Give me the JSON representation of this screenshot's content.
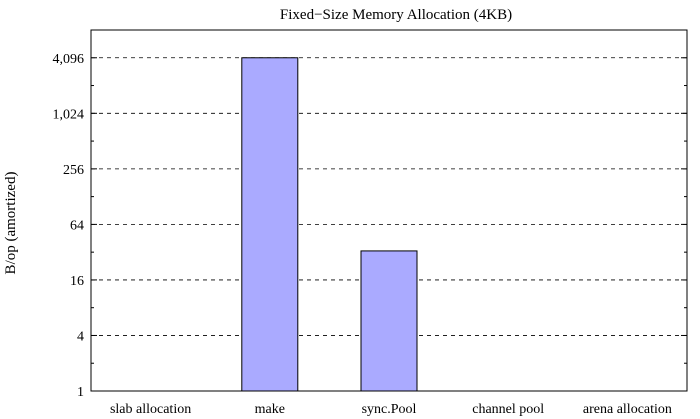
{
  "chart_data": {
    "type": "bar",
    "title": "Fixed−Size Memory Allocation (4KB)",
    "xlabel": "",
    "ylabel": "B/op (amortized)",
    "yscale": "log2",
    "ylim": [
      1,
      8192
    ],
    "yticks": [
      {
        "value": 1,
        "label": "1"
      },
      {
        "value": 4,
        "label": "4"
      },
      {
        "value": 16,
        "label": "16"
      },
      {
        "value": 64,
        "label": "64"
      },
      {
        "value": 256,
        "label": "256"
      },
      {
        "value": 1024,
        "label": "1,024"
      },
      {
        "value": 4096,
        "label": "4,096"
      }
    ],
    "grid": "horizontal dashed at major y ticks",
    "categories": [
      "slab allocation",
      "make",
      "sync.Pool",
      "channel pool",
      "arena allocation"
    ],
    "values": [
      0,
      4096,
      33,
      0,
      0
    ],
    "bar_color": "#aaaaff",
    "bar_edge_color": "#000000"
  }
}
